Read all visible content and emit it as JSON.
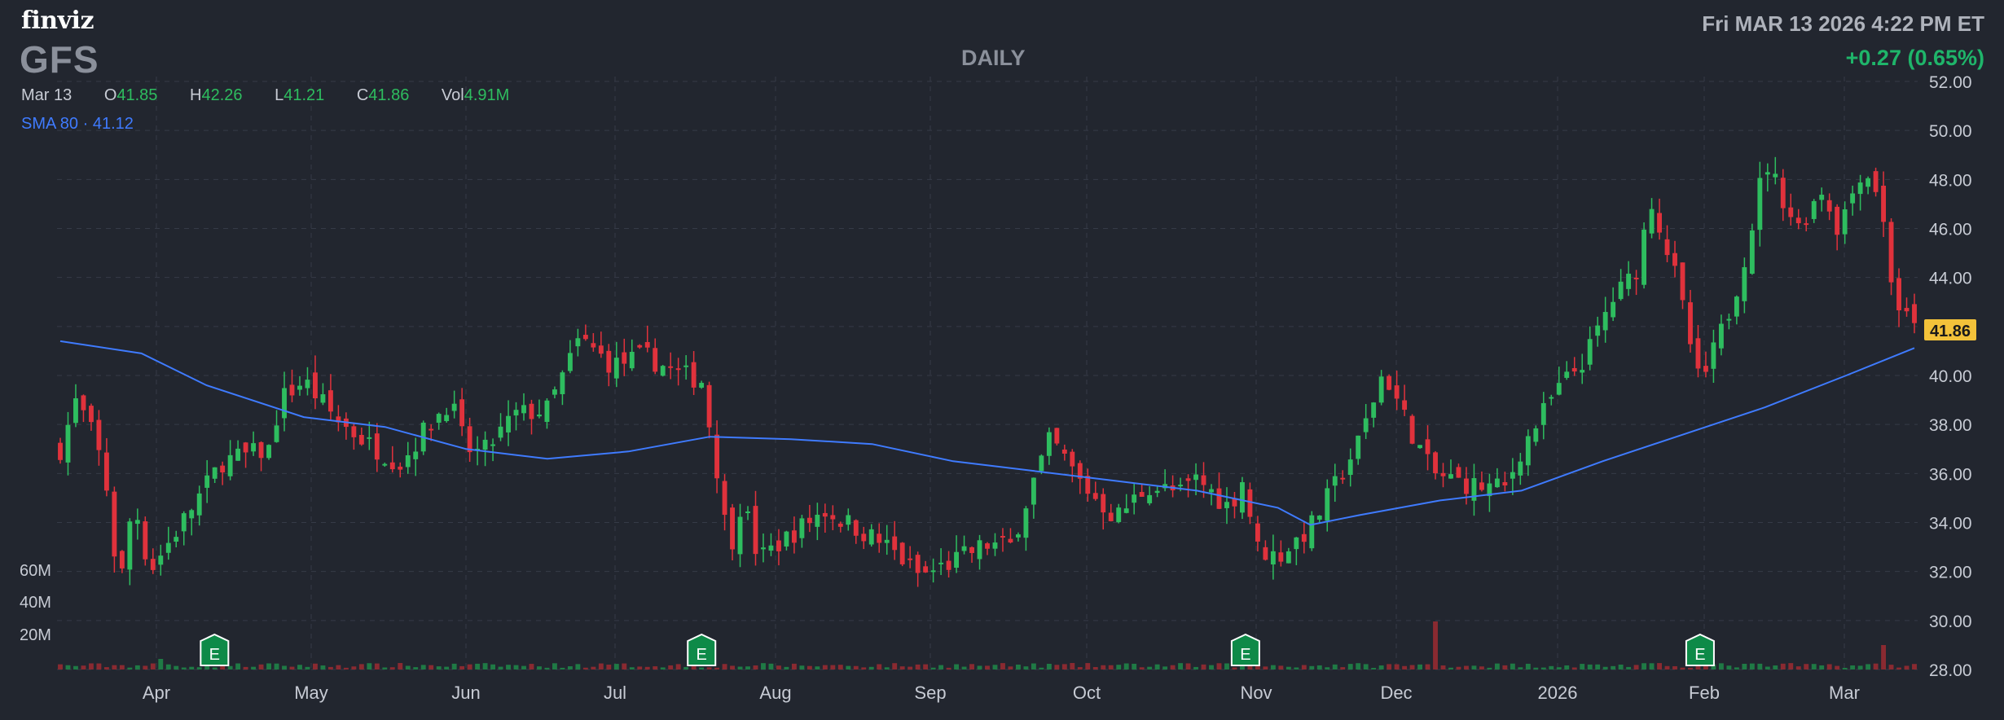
{
  "header": {
    "logo": "finviz",
    "ticker": "GFS",
    "period": "DAILY",
    "datetime": "Fri MAR 13 2026 4:22 PM ET",
    "change": "+0.27 (0.65%)"
  },
  "ohlc": {
    "date": "Mar 13",
    "open_label": "O",
    "open": "41.85",
    "high_label": "H",
    "high": "42.26",
    "low_label": "L",
    "low": "41.21",
    "close_label": "C",
    "close": "41.86",
    "vol_label": "Vol",
    "vol": "4.91M"
  },
  "sma": {
    "label": "SMA 80",
    "dot": "·",
    "value": "41.12"
  },
  "colors": {
    "background": "#22262f",
    "up": "#2ebd5f",
    "down": "#e0323c",
    "sma": "#3f7bff",
    "grid": "#363b47",
    "price_tag": "#f3c23a"
  },
  "chart_data": {
    "type": "candlestick",
    "ylim": [
      28,
      52
    ],
    "y_ticks": [
      "52.00",
      "50.00",
      "48.00",
      "46.00",
      "44.00",
      "42.00",
      "40.00",
      "38.00",
      "36.00",
      "34.00",
      "32.00",
      "30.00",
      "28.00"
    ],
    "x_ticks": [
      "Apr",
      "May",
      "Jun",
      "Jul",
      "Aug",
      "Sep",
      "Oct",
      "Nov",
      "Dec",
      "2026",
      "Feb",
      "Mar"
    ],
    "volume_labels": [
      "60M",
      "40M",
      "20M"
    ],
    "last_price_tag": "41.86",
    "earnings_marker": "E",
    "earnings_after_month_index": [
      0.95,
      3.95,
      7.3,
      10.1
    ],
    "anchors": [
      [
        0,
        37.0
      ],
      [
        0.1,
        39.0
      ],
      [
        0.22,
        37.3
      ],
      [
        0.3,
        35.0
      ],
      [
        0.36,
        31.0
      ],
      [
        0.45,
        35.0
      ],
      [
        0.55,
        32.0
      ],
      [
        0.75,
        34.0
      ],
      [
        1.0,
        36.5
      ],
      [
        1.3,
        37.0
      ],
      [
        1.35,
        39.0
      ],
      [
        1.5,
        39.8
      ],
      [
        1.7,
        38.2
      ],
      [
        1.9,
        37.2
      ],
      [
        2.1,
        36.4
      ],
      [
        2.2,
        37.4
      ],
      [
        2.4,
        39.0
      ],
      [
        2.5,
        37.0
      ],
      [
        2.6,
        36.8
      ],
      [
        2.8,
        38.4
      ],
      [
        3.0,
        38.6
      ],
      [
        3.2,
        41.5
      ],
      [
        3.4,
        40.4
      ],
      [
        3.6,
        40.8
      ],
      [
        3.8,
        40.1
      ],
      [
        3.95,
        39.8
      ],
      [
        4.05,
        36.0
      ],
      [
        4.12,
        32.8
      ],
      [
        4.2,
        35.0
      ],
      [
        4.3,
        32.5
      ],
      [
        4.5,
        33.5
      ],
      [
        4.7,
        34.5
      ],
      [
        4.9,
        33.8
      ],
      [
        5.1,
        33.0
      ],
      [
        5.3,
        31.8
      ],
      [
        5.5,
        32.4
      ],
      [
        5.7,
        33.1
      ],
      [
        5.85,
        33.0
      ],
      [
        6.0,
        35.8
      ],
      [
        6.1,
        37.4
      ],
      [
        6.3,
        35.5
      ],
      [
        6.5,
        34.2
      ],
      [
        6.7,
        35.5
      ],
      [
        6.9,
        35.2
      ],
      [
        7.0,
        35.8
      ],
      [
        7.2,
        34.6
      ],
      [
        7.3,
        36.0
      ],
      [
        7.35,
        33.0
      ],
      [
        7.5,
        32.6
      ],
      [
        7.7,
        33.8
      ],
      [
        7.85,
        35.5
      ],
      [
        8.0,
        37.3
      ],
      [
        8.15,
        40.2
      ],
      [
        8.3,
        38.0
      ],
      [
        8.45,
        36.0
      ],
      [
        8.7,
        35.5
      ],
      [
        8.9,
        35.4
      ],
      [
        9.0,
        37.0
      ],
      [
        9.2,
        39.2
      ],
      [
        9.4,
        40.8
      ],
      [
        9.55,
        43.0
      ],
      [
        9.7,
        44.2
      ],
      [
        9.8,
        47.2
      ],
      [
        9.95,
        44.0
      ],
      [
        10.1,
        39.5
      ],
      [
        10.3,
        43.0
      ],
      [
        10.4,
        45.5
      ],
      [
        10.5,
        48.8
      ],
      [
        10.7,
        46.0
      ],
      [
        10.85,
        47.6
      ],
      [
        10.95,
        46.0
      ],
      [
        11.1,
        48.5
      ],
      [
        11.2,
        47.5
      ],
      [
        11.3,
        43.0
      ],
      [
        11.42,
        41.86
      ]
    ],
    "sma_points": [
      [
        0,
        41.4
      ],
      [
        0.5,
        40.9
      ],
      [
        0.9,
        39.6
      ],
      [
        1.5,
        38.3
      ],
      [
        2.0,
        37.9
      ],
      [
        2.5,
        37.0
      ],
      [
        3.0,
        36.6
      ],
      [
        3.5,
        36.9
      ],
      [
        4.0,
        37.5
      ],
      [
        4.5,
        37.4
      ],
      [
        5.0,
        37.2
      ],
      [
        5.5,
        36.5
      ],
      [
        6.0,
        36.1
      ],
      [
        6.5,
        35.7
      ],
      [
        7.0,
        35.3
      ],
      [
        7.5,
        34.6
      ],
      [
        7.7,
        33.9
      ],
      [
        8.0,
        34.3
      ],
      [
        8.5,
        34.9
      ],
      [
        9.0,
        35.3
      ],
      [
        9.5,
        36.5
      ],
      [
        10.0,
        37.6
      ],
      [
        10.5,
        38.7
      ],
      [
        11.0,
        40.0
      ],
      [
        11.42,
        41.12
      ]
    ]
  }
}
